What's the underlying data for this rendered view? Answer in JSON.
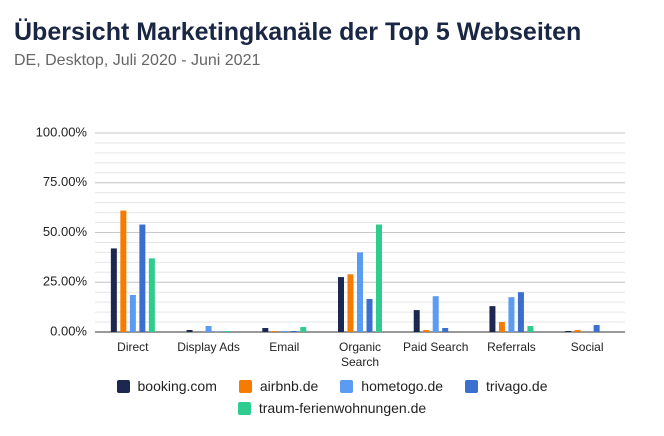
{
  "chart_data": {
    "type": "bar",
    "title": "Übersicht Marketingkanäle der Top 5 Webseiten",
    "subtitle": "DE, Desktop, Juli 2020 - Juni 2021",
    "categories": [
      "Direct",
      "Display Ads",
      "Email",
      "Organic Search",
      "Paid Search",
      "Referrals",
      "Social"
    ],
    "series": [
      {
        "name": "booking.com",
        "color": "#1c2850",
        "values": [
          42,
          1,
          2,
          27.6,
          11,
          13,
          0.5
        ]
      },
      {
        "name": "airbnb.de",
        "color": "#f57c00",
        "values": [
          61,
          0,
          0.5,
          29,
          1,
          5,
          1
        ]
      },
      {
        "name": "hometogo.de",
        "color": "#5b9bf2",
        "values": [
          18.6,
          3,
          0.5,
          40,
          18,
          17.5,
          0
        ]
      },
      {
        "name": "trivago.de",
        "color": "#3a6fd0",
        "values": [
          54,
          0.3,
          0.5,
          16.6,
          2,
          20,
          3.5
        ]
      },
      {
        "name": "traum-ferienwohnungen.de",
        "color": "#2ecc8e",
        "values": [
          37,
          0.5,
          2.5,
          54,
          0,
          3,
          0
        ]
      }
    ],
    "ylim": [
      0,
      100
    ],
    "yticks": [
      {
        "value": 0,
        "label": "0.00%"
      },
      {
        "value": 25,
        "label": "25.00%"
      },
      {
        "value": 50,
        "label": "50.00%"
      },
      {
        "value": 75,
        "label": "75.00%"
      },
      {
        "value": 100,
        "label": "100.00%"
      }
    ],
    "minor_grid_step": 5,
    "grid": true
  }
}
